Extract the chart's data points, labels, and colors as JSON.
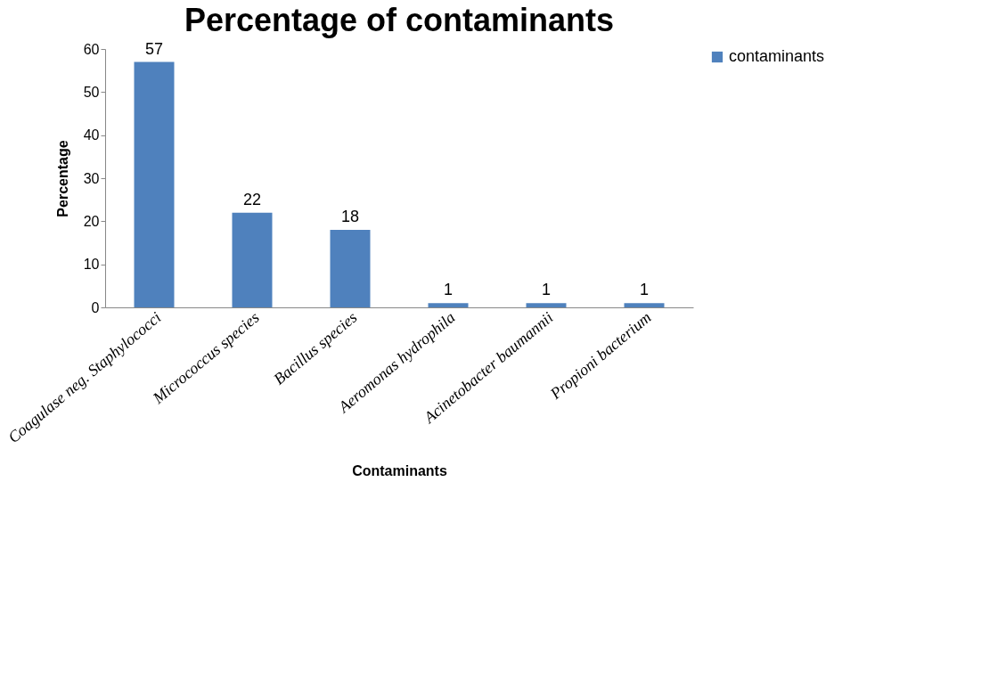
{
  "chart_data": {
    "type": "bar",
    "title": "Percentage of contaminants",
    "xlabel": "Contaminants",
    "ylabel": "Percentage",
    "categories": [
      "Coagulase neg. Staphylococci",
      "Micrococcus species",
      "Bacillus species",
      "Aeromonas hydrophila",
      "Acinetobacter baumannii",
      "Propioni bacterium"
    ],
    "series": [
      {
        "name": "contaminants",
        "color": "#4f81bd",
        "values": [
          57,
          22,
          18,
          1,
          1,
          1
        ]
      }
    ],
    "ylim": [
      0,
      60
    ],
    "yticks": [
      0,
      10,
      20,
      30,
      40,
      50,
      60
    ],
    "grid": false,
    "legend": "right",
    "data_labels": true
  }
}
